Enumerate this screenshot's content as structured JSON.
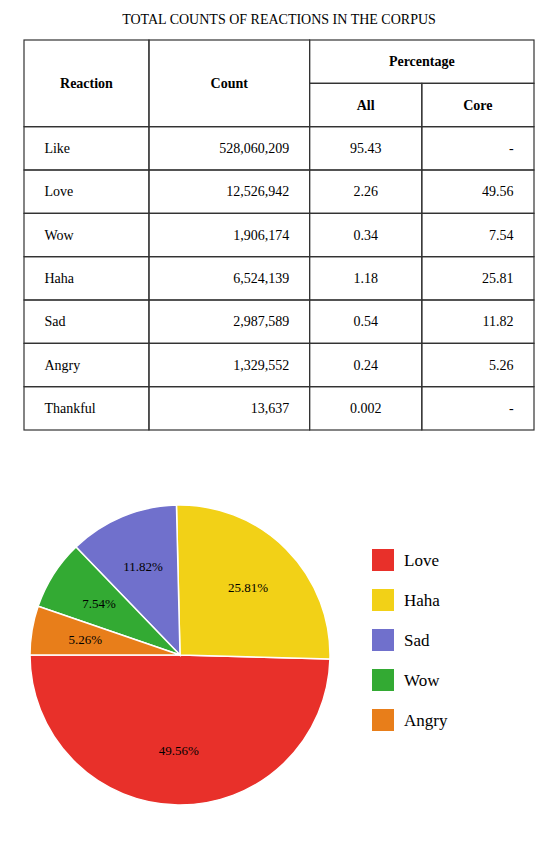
{
  "chart_data": [
    {
      "type": "table",
      "title": "TOTAL COUNTS OF REACTIONS IN THE CORPUS",
      "row_label": "Reaction",
      "categories": [
        "Like",
        "Love",
        "Wow",
        "Haha",
        "Sad",
        "Angry",
        "Thankful"
      ],
      "data_labels": true,
      "series": [
        {
          "name": "Count",
          "values": [
            528060209,
            12526942,
            1906174,
            6524139,
            2987589,
            1329552,
            13637
          ],
          "value_labels": [
            "528,060,209",
            "12,526,942",
            "1,906,174",
            "6,524,139",
            "2,987,589",
            "1,329,552",
            "13,637"
          ]
        },
        {
          "name": "All",
          "group": "Percentage",
          "values": [
            95.43,
            2.26,
            0.34,
            1.18,
            0.54,
            0.24,
            0.002
          ]
        },
        {
          "name": "Core",
          "group": "Percentage",
          "values": [
            null,
            49.56,
            7.54,
            25.81,
            11.82,
            5.26,
            null
          ],
          "value_labels": [
            "-",
            "49.56",
            "7.54",
            "25.81",
            "11.82",
            "5.26",
            "-"
          ]
        }
      ]
    },
    {
      "type": "pie",
      "categories": [
        "Love",
        "Haha",
        "Sad",
        "Wow",
        "Angry"
      ],
      "values": [
        49.56,
        25.81,
        11.82,
        7.54,
        5.26
      ],
      "value_labels": [
        "49.56%",
        "25.81%",
        "11.82%",
        "7.54%",
        "5.26%"
      ],
      "colors": [
        "#e8302a",
        "#f2d117",
        "#7070cc",
        "#33aa33",
        "#e87e1a"
      ],
      "data_labels": true,
      "legend": "right"
    }
  ]
}
